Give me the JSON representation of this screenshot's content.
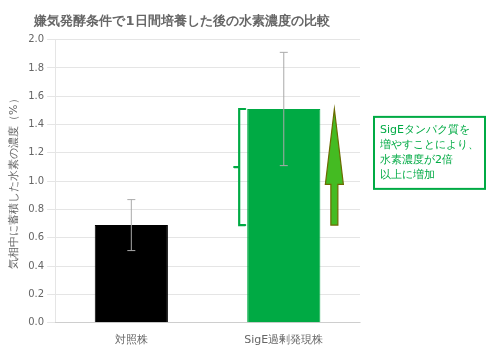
{
  "chart_data": {
    "type": "bar",
    "title": "嫌気発酵条件で1日間培養した後の水素濃度の比較",
    "ylabel": "気相中に蓄積した水素の濃度（%）",
    "categories": [
      "対照株",
      "SigE過剰発現株"
    ],
    "values": [
      0.69,
      1.51
    ],
    "errors": [
      0.18,
      0.4
    ],
    "colors": [
      "#000000",
      "#00aa44"
    ],
    "ylim": [
      0,
      2.0
    ],
    "yticks": [
      {
        "value": 0,
        "label": "0.0"
      },
      0.2,
      0.4,
      0.6,
      0.8,
      {
        "value": 1,
        "label": "1.0"
      },
      1.2,
      1.4,
      1.6,
      1.8,
      {
        "value": 2,
        "label": "2.0"
      }
    ],
    "grid": true,
    "annotation": "SigEタンパク質を\n増やすことにより、\n水素濃度が2倍\n以上に増加"
  }
}
